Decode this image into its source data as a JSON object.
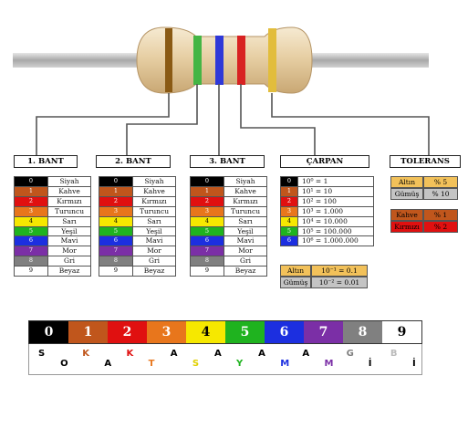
{
  "headers": {
    "bant1": "1. BANT",
    "bant2": "2. BANT",
    "bant3": "3. BANT",
    "carpan": "ÇARPAN",
    "tolerans": "TOLERANS"
  },
  "colors": [
    {
      "digit": "0",
      "name": "Siyah",
      "hex": "#000000",
      "text": "#ffffff"
    },
    {
      "digit": "1",
      "name": "Kahve",
      "hex": "#c0561c",
      "text": "#ffffff"
    },
    {
      "digit": "2",
      "name": "Kırmızı",
      "hex": "#e01010",
      "text": "#ffffff"
    },
    {
      "digit": "3",
      "name": "Turuncu",
      "hex": "#e8761c",
      "text": "#ffffff"
    },
    {
      "digit": "4",
      "name": "Sarı",
      "hex": "#f6e800",
      "text": "#000000"
    },
    {
      "digit": "5",
      "name": "Yeşil",
      "hex": "#1fb31f",
      "text": "#ffffff"
    },
    {
      "digit": "6",
      "name": "Mavi",
      "hex": "#1c2fe0",
      "text": "#ffffff"
    },
    {
      "digit": "7",
      "name": "Mor",
      "hex": "#7b2fa6",
      "text": "#ffffff"
    },
    {
      "digit": "8",
      "name": "Gri",
      "hex": "#808080",
      "text": "#ffffff"
    },
    {
      "digit": "9",
      "name": "Beyaz",
      "hex": "#ffffff",
      "text": "#000000"
    }
  ],
  "multipliers": [
    "10⁰ = 1",
    "10¹ = 10",
    "10² = 100",
    "10³ = 1.000",
    "10⁴ = 10.000",
    "10⁵ = 100.000",
    "10⁶ = 1.000.000"
  ],
  "multiplier_extra": [
    {
      "name": "Altın",
      "value": "10⁻¹ = 0.1",
      "hex": "#f2c15a"
    },
    {
      "name": "Gümüş",
      "value": "10⁻² = 0.01",
      "hex": "#c4c4c4"
    }
  ],
  "tolerance_gold_silver": [
    {
      "name": "Altın",
      "value": "% 5",
      "hex": "#f2c15a"
    },
    {
      "name": "Gümüş",
      "value": "% 10",
      "hex": "#c4c4c4"
    }
  ],
  "tolerance_brown_red": [
    {
      "name": "Kahve",
      "value": "% 1",
      "hex": "#c0561c"
    },
    {
      "name": "Kırmızı",
      "value": "% 2",
      "hex": "#e01010"
    }
  ],
  "mnemonic": [
    {
      "ch": "S",
      "color": "#000000"
    },
    {
      "ch": "O",
      "color": "#000000"
    },
    {
      "ch": "K",
      "color": "#c0561c"
    },
    {
      "ch": "A",
      "color": "#000000"
    },
    {
      "ch": "K",
      "color": "#e01010"
    },
    {
      "ch": "T",
      "color": "#e8761c"
    },
    {
      "ch": "A",
      "color": "#000000"
    },
    {
      "ch": "S",
      "color": "#e0d000"
    },
    {
      "ch": "A",
      "color": "#000000"
    },
    {
      "ch": "Y",
      "color": "#1fb31f"
    },
    {
      "ch": "A",
      "color": "#000000"
    },
    {
      "ch": "M",
      "color": "#1c2fe0"
    },
    {
      "ch": "A",
      "color": "#000000"
    },
    {
      "ch": "M",
      "color": "#7b2fa6"
    },
    {
      "ch": "G",
      "color": "#808080"
    },
    {
      "ch": "İ",
      "color": "#000000"
    },
    {
      "ch": "B",
      "color": "#bbbbbb"
    },
    {
      "ch": "İ",
      "color": "#000000"
    }
  ]
}
